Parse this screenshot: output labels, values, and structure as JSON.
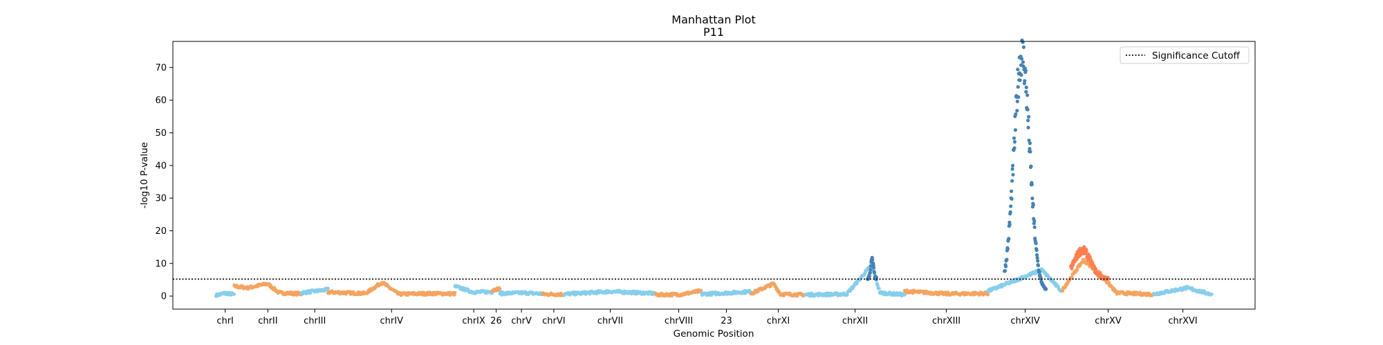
{
  "chart_data": {
    "type": "scatter",
    "title": "Manhattan Plot",
    "subtitle": "P11",
    "xlabel": "Genomic Position",
    "ylabel": "-log10 P-value",
    "ylim": [
      -4,
      78
    ],
    "yticks": [
      0,
      10,
      20,
      30,
      40,
      50,
      60,
      70
    ],
    "grid": false,
    "legend": {
      "position": "top-right",
      "entries": [
        {
          "label": "Significance Cutoff",
          "style": "dotted-line"
        }
      ]
    },
    "threshold": {
      "name": "Significance Cutoff",
      "value": 5.2
    },
    "colors": {
      "light_blue": "#87CEEB",
      "light_orange": "#F4A460",
      "steel_blue": "#4682B4",
      "coral": "#FF7F50"
    },
    "chromosomes": [
      {
        "label": "chrI",
        "start": 0,
        "end": 220,
        "color": "light_blue",
        "profile": [
          [
            0,
            0.2
          ],
          [
            110,
            0.9
          ],
          [
            220,
            0.5
          ]
        ]
      },
      {
        "label": "chrII",
        "start": 220,
        "end": 1030,
        "color": "light_orange",
        "profile": [
          [
            220,
            3.0
          ],
          [
            380,
            2.5
          ],
          [
            620,
            3.8
          ],
          [
            760,
            1.0
          ],
          [
            1030,
            0.7
          ]
        ]
      },
      {
        "label": "chrIII",
        "start": 1030,
        "end": 1350,
        "color": "light_blue",
        "profile": [
          [
            1030,
            1.0
          ],
          [
            1190,
            1.5
          ],
          [
            1350,
            2.0
          ]
        ]
      },
      {
        "label": "chrIV",
        "start": 1350,
        "end": 2880,
        "color": "light_orange",
        "profile": [
          [
            1350,
            1.2
          ],
          [
            1800,
            0.8
          ],
          [
            2000,
            4.2
          ],
          [
            2200,
            0.6
          ],
          [
            2600,
            0.8
          ],
          [
            2880,
            0.7
          ]
        ]
      },
      {
        "label": "chrIX",
        "start": 2880,
        "end": 3330,
        "color": "light_blue",
        "profile": [
          [
            2880,
            3.0
          ],
          [
            3100,
            1.2
          ],
          [
            3330,
            1.3
          ]
        ]
      },
      {
        "label": "26",
        "start": 3330,
        "end": 3420,
        "color": "light_orange",
        "profile": [
          [
            3330,
            1.8
          ],
          [
            3420,
            2.3
          ]
        ]
      },
      {
        "label": "chrV",
        "start": 3420,
        "end": 3940,
        "color": "light_blue",
        "profile": [
          [
            3420,
            0.8
          ],
          [
            3700,
            1.0
          ],
          [
            3940,
            0.7
          ]
        ]
      },
      {
        "label": "chrVI",
        "start": 3940,
        "end": 4200,
        "color": "light_orange",
        "profile": [
          [
            3940,
            0.6
          ],
          [
            4200,
            0.5
          ]
        ]
      },
      {
        "label": "chrVII",
        "start": 4200,
        "end": 5300,
        "color": "light_blue",
        "profile": [
          [
            4200,
            0.6
          ],
          [
            4750,
            1.4
          ],
          [
            5300,
            0.8
          ]
        ]
      },
      {
        "label": "chrVIII",
        "start": 5300,
        "end": 5850,
        "color": "light_orange",
        "profile": [
          [
            5300,
            0.4
          ],
          [
            5600,
            0.5
          ],
          [
            5850,
            1.6
          ]
        ]
      },
      {
        "label": "23",
        "start": 5850,
        "end": 6450,
        "color": "light_blue",
        "profile": [
          [
            5850,
            0.6
          ],
          [
            6200,
            1.0
          ],
          [
            6450,
            1.4
          ]
        ]
      },
      {
        "label": "chrXI",
        "start": 6450,
        "end": 7100,
        "color": "light_orange",
        "profile": [
          [
            6450,
            0.8
          ],
          [
            6720,
            3.8
          ],
          [
            6800,
            0.6
          ],
          [
            7100,
            0.4
          ]
        ]
      },
      {
        "label": "chrXII",
        "start": 7100,
        "end": 8300,
        "color": "light_blue",
        "profile": [
          [
            7100,
            0.4
          ],
          [
            7600,
            0.6
          ],
          [
            7900,
            9.5
          ],
          [
            8000,
            1.0
          ],
          [
            8300,
            0.4
          ]
        ]
      },
      {
        "label": "chrXIII",
        "start": 8300,
        "end": 9300,
        "color": "light_orange",
        "profile": [
          [
            8300,
            1.5
          ],
          [
            8800,
            0.7
          ],
          [
            9300,
            0.8
          ]
        ]
      },
      {
        "label": "chrXIV",
        "start": 9300,
        "end": 10200,
        "color": "light_blue",
        "profile": [
          [
            9300,
            1.5
          ],
          [
            9950,
            8.0
          ],
          [
            10200,
            1.2
          ]
        ]
      },
      {
        "label": "chrXV",
        "start": 10200,
        "end": 11300,
        "color": "light_orange",
        "profile": [
          [
            10200,
            2.0
          ],
          [
            10450,
            11.0
          ],
          [
            10650,
            7.0
          ],
          [
            10850,
            1.0
          ],
          [
            11300,
            0.5
          ]
        ]
      },
      {
        "label": "chrXVI",
        "start": 11300,
        "end": 12000,
        "color": "light_blue",
        "profile": [
          [
            11300,
            0.6
          ],
          [
            11700,
            2.5
          ],
          [
            12000,
            0.5
          ]
        ]
      }
    ],
    "significant_series": [
      {
        "name": "chrXIV-peak",
        "color": "steel_blue",
        "from": 9500,
        "to": 10000,
        "peak_x": 9710,
        "peak_y": 74,
        "floor": 1.5
      },
      {
        "name": "chrXII-peak",
        "color": "steel_blue",
        "from": 7850,
        "to": 7960,
        "peak_x": 7905,
        "peak_y": 11,
        "floor": 5.2
      },
      {
        "name": "chrXV-peak",
        "color": "coral",
        "from": 10300,
        "to": 10750,
        "peak_x": 10440,
        "peak_y": 14,
        "floor": 5.2
      }
    ],
    "xlim": [
      -520,
      12520
    ]
  }
}
